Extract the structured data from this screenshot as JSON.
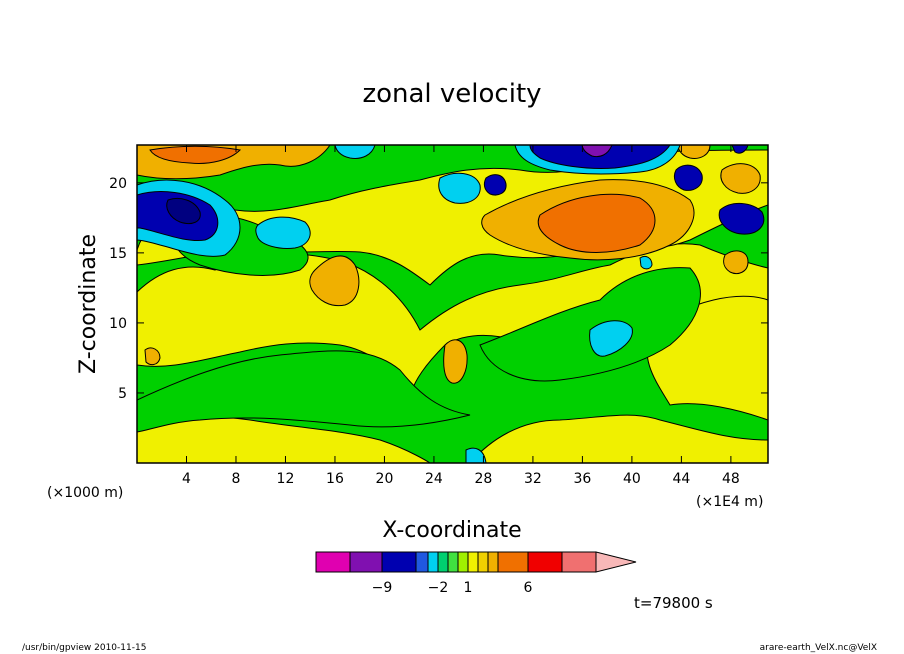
{
  "chart_data": {
    "type": "heatmap",
    "title": "zonal velocity",
    "xlabel": "X-coordinate",
    "ylabel": "Z-coordinate",
    "x_unit_left": "(×1000 m)",
    "x_unit_right": "(×1E4 m)",
    "xlim": [
      0,
      51
    ],
    "ylim": [
      0,
      22.7
    ],
    "x_ticks": [
      {
        "value": 4,
        "label": "4"
      },
      {
        "value": 8,
        "label": "8"
      },
      {
        "value": 12,
        "label": "12"
      },
      {
        "value": 16,
        "label": "16"
      },
      {
        "value": 20,
        "label": "20"
      },
      {
        "value": 24,
        "label": "24"
      },
      {
        "value": 28,
        "label": "28"
      },
      {
        "value": 32,
        "label": "32"
      },
      {
        "value": 36,
        "label": "36"
      },
      {
        "value": 40,
        "label": "40"
      },
      {
        "value": 44,
        "label": "44"
      },
      {
        "value": 48,
        "label": "48"
      }
    ],
    "y_ticks": [
      {
        "value": 5,
        "label": "5"
      },
      {
        "value": 10,
        "label": "10"
      },
      {
        "value": 15,
        "label": "15"
      },
      {
        "value": 20,
        "label": "20"
      }
    ],
    "colorbar": {
      "colors": [
        "#e000b0",
        "#8010b0",
        "#0000b0",
        "#2058e0",
        "#00d0f0",
        "#00d070",
        "#40e040",
        "#a0f000",
        "#f0f000",
        "#f0d000",
        "#f0b000",
        "#f07000",
        "#f00000",
        "#f07070",
        "#f8b8b8"
      ],
      "tick_labels": [
        {
          "after_box": 1,
          "label": "−9"
        },
        {
          "after_box": 4,
          "label": "−2"
        },
        {
          "after_box": 7,
          "label": "1"
        },
        {
          "after_box": 11,
          "label": "6"
        }
      ]
    },
    "time_label": "t=79800 s",
    "footer_left": "/usr/bin/gpview  2010-11-15",
    "footer_right": "arare-earth_VelX.nc@VelX"
  }
}
